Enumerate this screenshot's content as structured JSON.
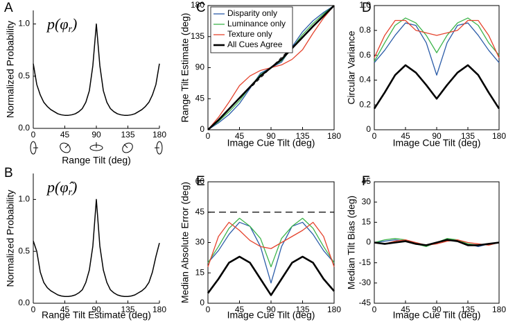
{
  "chart_data": [
    {
      "type": "line",
      "panel": "A",
      "ylabel": "Normalized Probability",
      "xlabel": "Range Tilt (deg)",
      "annotation": {
        "base": "p(φ",
        "sub": "r",
        "close": ")"
      },
      "x": [
        0,
        5,
        10,
        15,
        20,
        25,
        30,
        35,
        40,
        45,
        50,
        55,
        60,
        65,
        70,
        75,
        80,
        85,
        90,
        95,
        100,
        105,
        110,
        115,
        120,
        125,
        130,
        135,
        140,
        145,
        150,
        155,
        160,
        165,
        170,
        175,
        180
      ],
      "series": [
        {
          "color": "#000000",
          "linewidth": 1.5,
          "values": [
            0.62,
            0.42,
            0.32,
            0.25,
            0.21,
            0.18,
            0.16,
            0.14,
            0.13,
            0.125,
            0.125,
            0.13,
            0.14,
            0.16,
            0.19,
            0.25,
            0.36,
            0.6,
            1.0,
            0.6,
            0.36,
            0.25,
            0.19,
            0.16,
            0.14,
            0.13,
            0.125,
            0.125,
            0.13,
            0.14,
            0.16,
            0.18,
            0.21,
            0.25,
            0.32,
            0.42,
            0.62
          ]
        }
      ],
      "xlim": [
        0,
        180
      ],
      "xticks": [
        0,
        45,
        90,
        135,
        180
      ],
      "ylim": [
        0,
        1.13
      ],
      "yticks": [
        {
          "value": 0,
          "label": "0.0"
        },
        0.5,
        {
          "value": 1,
          "label": "1.0"
        }
      ],
      "box": false
    },
    {
      "type": "line",
      "panel": "B",
      "ylabel": "Normalized Probability",
      "xlabel": "Range Tilt Estimate (deg)",
      "annotation": {
        "base": "p(φ̂",
        "sub": "r",
        "close": ")"
      },
      "x": [
        0,
        5,
        10,
        15,
        20,
        25,
        30,
        35,
        40,
        45,
        50,
        55,
        60,
        65,
        70,
        75,
        80,
        85,
        90,
        95,
        100,
        105,
        110,
        115,
        120,
        125,
        130,
        135,
        140,
        145,
        150,
        155,
        160,
        165,
        170,
        175,
        180
      ],
      "series": [
        {
          "color": "#000000",
          "linewidth": 1.5,
          "values": [
            0.6,
            0.5,
            0.3,
            0.2,
            0.15,
            0.12,
            0.1,
            0.08,
            0.07,
            0.065,
            0.065,
            0.07,
            0.08,
            0.1,
            0.13,
            0.2,
            0.32,
            0.55,
            1.0,
            0.55,
            0.32,
            0.2,
            0.13,
            0.1,
            0.08,
            0.07,
            0.065,
            0.065,
            0.07,
            0.08,
            0.1,
            0.12,
            0.15,
            0.2,
            0.3,
            0.45,
            0.58
          ]
        }
      ],
      "xlim": [
        0,
        180
      ],
      "xticks": [
        0,
        45,
        90,
        135,
        180
      ],
      "ylim": [
        0,
        1.25
      ],
      "yticks": [
        {
          "value": 0,
          "label": "0.0"
        },
        0.5,
        {
          "value": 1,
          "label": "1.0"
        }
      ],
      "box": false
    },
    {
      "type": "line",
      "panel": "C",
      "ylabel": "Range Tilt Estimate (deg)",
      "xlabel": "Image Cue Tilt (deg)",
      "x": [
        0,
        15,
        30,
        45,
        60,
        75,
        90,
        105,
        120,
        135,
        150,
        165,
        180
      ],
      "diagonal": true,
      "legend": "upper left",
      "series": [
        {
          "name": "Disparity only",
          "color": "#2b5ca8",
          "linewidth": 1.3,
          "values": [
            0,
            10,
            22,
            38,
            60,
            82,
            90,
            98,
            120,
            142,
            158,
            170,
            180
          ]
        },
        {
          "name": "Luminance only",
          "color": "#3cb44a",
          "linewidth": 1.3,
          "values": [
            0,
            12,
            26,
            42,
            62,
            80,
            90,
            100,
            118,
            138,
            154,
            168,
            180
          ]
        },
        {
          "name": "Texture only",
          "color": "#e5432d",
          "linewidth": 1.3,
          "values": [
            0,
            18,
            40,
            64,
            78,
            86,
            90,
            94,
            102,
            116,
            140,
            162,
            180
          ]
        },
        {
          "name": "All Cues Agree",
          "color": "#000000",
          "linewidth": 2.6,
          "values": [
            0,
            14,
            30,
            46,
            62,
            78,
            90,
            102,
            118,
            134,
            150,
            165,
            180
          ]
        }
      ],
      "xlim": [
        0,
        180
      ],
      "xticks": [
        0,
        45,
        90,
        135,
        180
      ],
      "ylim": [
        0,
        180
      ],
      "yticks": [
        0,
        45,
        90,
        135,
        180
      ],
      "box": true
    },
    {
      "type": "line",
      "panel": "D",
      "ylabel": "Circular Variance",
      "xlabel": "Image Cue Tilt (deg)",
      "x": [
        0,
        15,
        30,
        45,
        60,
        75,
        90,
        105,
        120,
        135,
        150,
        165,
        180
      ],
      "series": [
        {
          "color": "#2b5ca8",
          "linewidth": 1.3,
          "values": [
            0.54,
            0.64,
            0.76,
            0.86,
            0.84,
            0.7,
            0.44,
            0.7,
            0.84,
            0.86,
            0.76,
            0.64,
            0.54
          ]
        },
        {
          "color": "#3cb44a",
          "linewidth": 1.3,
          "values": [
            0.55,
            0.7,
            0.84,
            0.9,
            0.86,
            0.76,
            0.62,
            0.76,
            0.86,
            0.9,
            0.84,
            0.7,
            0.6
          ]
        },
        {
          "color": "#e5432d",
          "linewidth": 1.3,
          "values": [
            0.58,
            0.76,
            0.88,
            0.88,
            0.8,
            0.78,
            0.76,
            0.78,
            0.8,
            0.88,
            0.88,
            0.76,
            0.58
          ]
        },
        {
          "color": "#000000",
          "linewidth": 2.6,
          "values": [
            0.17,
            0.3,
            0.44,
            0.52,
            0.46,
            0.36,
            0.25,
            0.36,
            0.46,
            0.52,
            0.44,
            0.3,
            0.17
          ]
        }
      ],
      "xlim": [
        0,
        180
      ],
      "xticks": [
        0,
        45,
        90,
        135,
        180
      ],
      "ylim": [
        0,
        1
      ],
      "yticks": [
        0,
        0.2,
        0.4,
        0.6,
        0.8,
        {
          "value": 1,
          "label": "1.0"
        }
      ],
      "box": true
    },
    {
      "type": "line",
      "panel": "E",
      "ylabel": "Median Absolute Error (deg)",
      "xlabel": "Image Cue Tilt (deg)",
      "x": [
        0,
        15,
        30,
        45,
        60,
        75,
        90,
        105,
        120,
        135,
        150,
        165,
        180
      ],
      "hline": 45,
      "series": [
        {
          "color": "#2b5ca8",
          "linewidth": 1.3,
          "values": [
            20,
            26,
            34,
            40,
            38,
            28,
            10,
            28,
            38,
            40,
            34,
            26,
            20
          ]
        },
        {
          "color": "#3cb44a",
          "linewidth": 1.3,
          "values": [
            20,
            28,
            37,
            42,
            38,
            32,
            18,
            32,
            38,
            42,
            37,
            28,
            20
          ]
        },
        {
          "color": "#e5432d",
          "linewidth": 1.3,
          "values": [
            18,
            33,
            40,
            36,
            31,
            28,
            27,
            30,
            33,
            36,
            40,
            33,
            18
          ]
        },
        {
          "color": "#000000",
          "linewidth": 2.6,
          "values": [
            5,
            12,
            20,
            23,
            20,
            12,
            4,
            12,
            20,
            23,
            20,
            12,
            6
          ]
        }
      ],
      "xlim": [
        0,
        180
      ],
      "xticks": [
        0,
        45,
        90,
        135,
        180
      ],
      "ylim": [
        0,
        60
      ],
      "yticks": [
        0,
        15,
        30,
        45,
        60
      ],
      "box": true
    },
    {
      "type": "line",
      "panel": "F",
      "ylabel": "Median Tilt Bias (deg)",
      "xlabel": "Image Cue Tilt (deg)",
      "x": [
        0,
        15,
        30,
        45,
        60,
        75,
        90,
        105,
        120,
        135,
        150,
        165,
        180
      ],
      "series": [
        {
          "color": "#2b5ca8",
          "linewidth": 1.3,
          "values": [
            0,
            1,
            2,
            1,
            -1,
            -2,
            0,
            2,
            1,
            -1,
            -3,
            -1,
            0
          ]
        },
        {
          "color": "#3cb44a",
          "linewidth": 1.3,
          "values": [
            0,
            2,
            3,
            2,
            -1,
            -3,
            0,
            3,
            2,
            -1,
            -2,
            -1,
            0
          ]
        },
        {
          "color": "#e5432d",
          "linewidth": 1.3,
          "values": [
            0,
            -1,
            1,
            2,
            0,
            -2,
            -1,
            1,
            2,
            0,
            -1,
            -2,
            0
          ]
        },
        {
          "color": "#000000",
          "linewidth": 2.6,
          "values": [
            0,
            -1,
            0,
            1,
            -1,
            -2,
            0,
            2,
            1,
            -2,
            -2,
            -1,
            0
          ]
        }
      ],
      "xlim": [
        0,
        180
      ],
      "xticks": [
        0,
        45,
        90,
        135,
        180
      ],
      "ylim": [
        -45,
        45
      ],
      "yticks": [
        -45,
        -30,
        -15,
        0,
        15,
        30,
        45
      ],
      "box": true
    }
  ]
}
